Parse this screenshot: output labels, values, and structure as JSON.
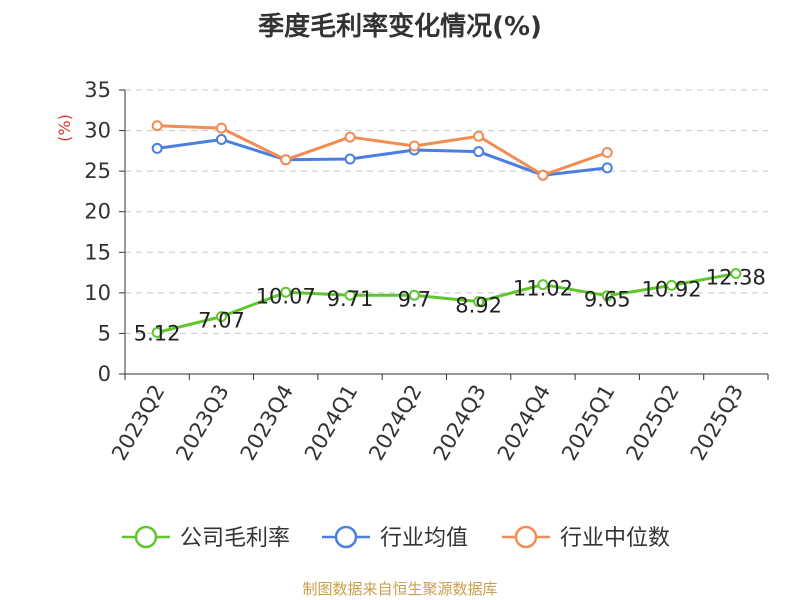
{
  "chart_data": {
    "type": "line",
    "title": "季度毛利率变化情况(%)",
    "ylabel": "(%)",
    "ylim": [
      0,
      35
    ],
    "yticks": [
      0,
      5,
      10,
      15,
      20,
      25,
      30,
      35
    ],
    "grid": true,
    "legend_position": "bottom",
    "categories": [
      "2023Q2",
      "2023Q3",
      "2023Q4",
      "2024Q1",
      "2024Q2",
      "2024Q3",
      "2024Q4",
      "2025Q1",
      "2025Q2",
      "2025Q3"
    ],
    "series": [
      {
        "name": "公司毛利率",
        "color": "#5fc72c",
        "values": [
          5.12,
          7.07,
          10.07,
          9.71,
          9.7,
          8.92,
          11.02,
          9.65,
          10.92,
          12.38
        ],
        "labels": [
          "5.12",
          "7.07",
          "10.07",
          "9.71",
          "9.7",
          "8.92",
          "11.02",
          "9.65",
          "10.92",
          "12.38"
        ]
      },
      {
        "name": "行业均值",
        "color": "#4a7fe0",
        "values": [
          27.8,
          28.9,
          26.4,
          26.5,
          27.6,
          27.4,
          24.5,
          25.4,
          null,
          null
        ]
      },
      {
        "name": "行业中位数",
        "color": "#f28c55",
        "values": [
          30.6,
          30.3,
          26.4,
          29.2,
          28.1,
          29.3,
          24.5,
          27.3,
          null,
          null
        ]
      }
    ]
  },
  "footer": {
    "source": "制图数据来自恒生聚源数据库"
  }
}
